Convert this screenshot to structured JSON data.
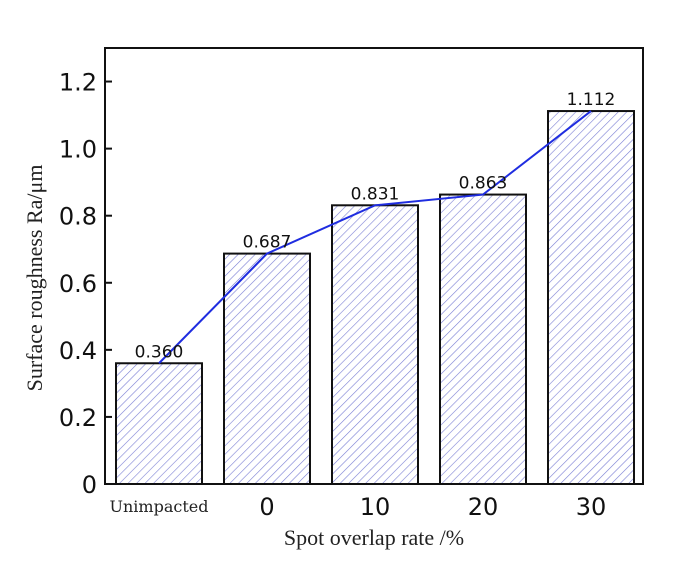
{
  "chart_data": {
    "type": "bar",
    "title": "",
    "xlabel": "Spot overlap rate /%",
    "ylabel": "Surface roughness Ra/μm",
    "categories": [
      "Unimpacted",
      "0",
      "10",
      "20",
      "30"
    ],
    "values": [
      0.36,
      0.687,
      0.831,
      0.863,
      1.112
    ],
    "data_labels": [
      "0.360",
      "0.687",
      "0.831",
      "0.863",
      "1.112"
    ],
    "ylim": [
      0,
      1.3
    ],
    "yticks": [
      0,
      0.2,
      0.4,
      0.6,
      0.8,
      1.0,
      1.2
    ],
    "ytick_labels": [
      "0",
      "0.2",
      "0.4",
      "0.6",
      "0.8",
      "1.0",
      "1.2"
    ],
    "grid": false,
    "overlay_line": true,
    "colors": {
      "hatch": "#7b7fd4",
      "line": "#1f2de0",
      "bar_edge": "#111111"
    }
  }
}
